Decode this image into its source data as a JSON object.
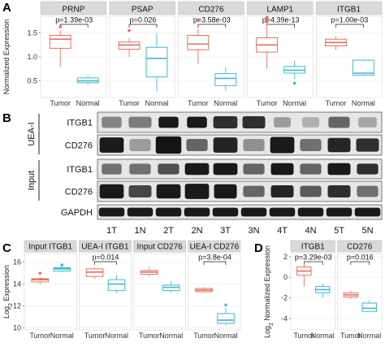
{
  "panels": {
    "A": "A",
    "B": "B",
    "C": "C",
    "D": "D"
  },
  "colors": {
    "tumor": "#e8705c",
    "normal": "#3fb8d6",
    "strip": "#d9d9d9",
    "grid": "#ececec"
  },
  "chart_data": [
    {
      "panel": "A",
      "type": "box",
      "ylabel": "Normalized Expression",
      "ylim": [
        0.15,
        1.85
      ],
      "yticks": [
        "0.5",
        "1.0",
        "1.5"
      ],
      "ytick_values": [
        0.5,
        1.0,
        1.5
      ],
      "categories": [
        "Tumor",
        "Normal"
      ],
      "facets": [
        {
          "label": "PRNP",
          "pvalue": "p=1.39e-03",
          "tumor": {
            "q1": 1.18,
            "median": 1.37,
            "q3": 1.45,
            "wlo": 0.8,
            "whi": 1.56,
            "outliers": [
              1.63
            ]
          },
          "normal": {
            "q1": 0.46,
            "median": 0.5,
            "q3": 0.56,
            "wlo": 0.42,
            "whi": 0.6,
            "outliers": []
          }
        },
        {
          "label": "PSAP",
          "pvalue": "p=0.026",
          "tumor": {
            "q1": 1.16,
            "median": 1.25,
            "q3": 1.31,
            "wlo": 1.0,
            "whi": 1.4,
            "outliers": [
              1.55
            ]
          },
          "normal": {
            "q1": 0.58,
            "median": 0.97,
            "q3": 1.2,
            "wlo": 0.28,
            "whi": 1.5,
            "outliers": []
          }
        },
        {
          "label": "CD276",
          "pvalue": "p=3.58e-03",
          "tumor": {
            "q1": 1.15,
            "median": 1.27,
            "q3": 1.45,
            "wlo": 0.85,
            "whi": 1.58,
            "outliers": [
              1.76
            ]
          },
          "normal": {
            "q1": 0.4,
            "median": 0.55,
            "q3": 0.65,
            "wlo": 0.3,
            "whi": 0.78,
            "outliers": []
          }
        },
        {
          "label": "LAMP1",
          "pvalue": "p=4.39e-13",
          "tumor": {
            "q1": 1.1,
            "median": 1.25,
            "q3": 1.4,
            "wlo": 0.75,
            "whi": 1.72,
            "outliers": [
              1.74,
              1.77,
              1.8,
              1.83
            ]
          },
          "normal": {
            "q1": 0.66,
            "median": 0.72,
            "q3": 0.8,
            "wlo": 0.53,
            "whi": 0.92,
            "outliers": [
              0.45
            ]
          }
        },
        {
          "label": "ITGB1",
          "pvalue": "p=1.00e-03",
          "tumor": {
            "q1": 1.23,
            "median": 1.3,
            "q3": 1.37,
            "wlo": 1.15,
            "whi": 1.43,
            "outliers": []
          },
          "normal": {
            "q1": 0.62,
            "median": 0.66,
            "q3": 0.93,
            "wlo": 0.6,
            "whi": 0.95,
            "outliers": []
          }
        }
      ]
    },
    {
      "panel": "C",
      "type": "box",
      "ylabel_main": "Log",
      "ylabel_sub": "2",
      "ylabel_rest": " Expression",
      "ylim": [
        9.8,
        16.8
      ],
      "yticks": [
        "10",
        "12",
        "14",
        "16"
      ],
      "ytick_values": [
        10,
        12,
        14,
        16
      ],
      "categories": [
        "Tumor",
        "Normal"
      ],
      "facets": [
        {
          "label": "Input ITGB1",
          "pvalue": "",
          "tumor": {
            "q1": 14.2,
            "median": 14.4,
            "q3": 14.5,
            "wlo": 14.0,
            "whi": 14.6,
            "outliers": [
              15.0
            ]
          },
          "normal": {
            "q1": 15.2,
            "median": 15.4,
            "q3": 15.5,
            "wlo": 15.1,
            "whi": 15.65,
            "outliers": [
              15.75
            ]
          }
        },
        {
          "label": "UEA-I  ITGB1",
          "pvalue": "p=0.014",
          "tumor": {
            "q1": 14.7,
            "median": 15.1,
            "q3": 15.4,
            "wlo": 14.5,
            "whi": 15.5,
            "outliers": []
          },
          "normal": {
            "q1": 13.4,
            "median": 14.0,
            "q3": 14.4,
            "wlo": 13.2,
            "whi": 14.8,
            "outliers": []
          }
        },
        {
          "label": "Input CD276",
          "pvalue": "",
          "tumor": {
            "q1": 14.9,
            "median": 15.1,
            "q3": 15.25,
            "wlo": 14.7,
            "whi": 15.6,
            "outliers": []
          },
          "normal": {
            "q1": 13.4,
            "median": 13.7,
            "q3": 13.9,
            "wlo": 13.2,
            "whi": 14.3,
            "outliers": []
          }
        },
        {
          "label": "UEA-I  CD276",
          "pvalue": "p=3.8e-04",
          "tumor": {
            "q1": 13.3,
            "median": 13.45,
            "q3": 13.6,
            "wlo": 13.2,
            "whi": 13.7,
            "outliers": []
          },
          "normal": {
            "q1": 10.4,
            "median": 10.7,
            "q3": 11.3,
            "wlo": 10.2,
            "whi": 11.8,
            "outliers": [
              12.1
            ]
          }
        }
      ]
    },
    {
      "panel": "D",
      "type": "box",
      "ylabel_main": "Log",
      "ylabel_sub": "2",
      "ylabel_rest": " Normalized Expression",
      "ylim": [
        -5.1,
        2.3
      ],
      "yticks": [
        "-4",
        "-2",
        "0",
        "2"
      ],
      "ytick_values": [
        -4,
        -2,
        0,
        2
      ],
      "categories": [
        "Tumor",
        "Normal"
      ],
      "facets": [
        {
          "label": "ITGB1",
          "pvalue": "p=3.29e-03",
          "tumor": {
            "q1": 0.2,
            "median": 0.6,
            "q3": 1.0,
            "wlo": -0.9,
            "whi": 1.4,
            "outliers": []
          },
          "normal": {
            "q1": -1.5,
            "median": -1.2,
            "q3": -0.9,
            "wlo": -2.0,
            "whi": -0.6,
            "outliers": []
          }
        },
        {
          "label": "CD276",
          "pvalue": "p=0.016",
          "tumor": {
            "q1": -1.9,
            "median": -1.7,
            "q3": -1.5,
            "wlo": -2.1,
            "whi": -1.3,
            "outliers": []
          },
          "normal": {
            "q1": -3.3,
            "median": -3.0,
            "q3": -2.5,
            "wlo": -3.4,
            "whi": -2.2,
            "outliers": []
          }
        }
      ]
    }
  ],
  "western_blot": {
    "side_labels": [
      "UEA-I",
      "Input"
    ],
    "rows": [
      {
        "label": "ITGB1",
        "bands": [
          [
            0.45,
            0.7,
            0.55
          ],
          [
            0.5,
            0.8,
            0.55
          ],
          [
            0.95,
            0.7,
            0.55
          ],
          [
            0.95,
            0.7,
            0.55
          ],
          [
            0.85,
            0.85,
            0.6
          ],
          [
            0.85,
            0.8,
            0.6
          ],
          [
            0.35,
            0.6,
            0.5
          ],
          [
            0.25,
            0.6,
            0.5
          ],
          [
            0.6,
            0.75,
            0.55
          ],
          [
            0.3,
            0.65,
            0.5
          ]
        ]
      },
      {
        "label": "CD276",
        "bands": [
          [
            0.95,
            0.85,
            0.75
          ],
          [
            0.35,
            0.75,
            0.6
          ],
          [
            0.97,
            0.9,
            0.85
          ],
          [
            0.6,
            0.75,
            0.6
          ],
          [
            0.9,
            0.85,
            0.75
          ],
          [
            0.4,
            0.75,
            0.6
          ],
          [
            0.95,
            0.85,
            0.8
          ],
          [
            0.55,
            0.75,
            0.6
          ],
          [
            0.9,
            0.8,
            0.7
          ],
          [
            0.85,
            0.8,
            0.65
          ]
        ]
      },
      {
        "label": "ITGB1",
        "bands": [
          [
            0.55,
            0.7,
            0.55
          ],
          [
            0.55,
            0.75,
            0.55
          ],
          [
            0.7,
            0.75,
            0.55
          ],
          [
            0.95,
            0.85,
            0.6
          ],
          [
            0.95,
            0.85,
            0.6
          ],
          [
            0.6,
            0.75,
            0.55
          ],
          [
            0.95,
            0.8,
            0.6
          ],
          [
            0.6,
            0.75,
            0.55
          ],
          [
            0.95,
            0.8,
            0.6
          ],
          [
            0.85,
            0.75,
            0.55
          ]
        ]
      },
      {
        "label": "CD276",
        "bands": [
          [
            0.95,
            0.85,
            0.7
          ],
          [
            0.75,
            0.8,
            0.6
          ],
          [
            0.95,
            0.85,
            0.7
          ],
          [
            0.95,
            0.85,
            0.75
          ],
          [
            0.95,
            0.8,
            0.7
          ],
          [
            0.6,
            0.75,
            0.55
          ],
          [
            0.9,
            0.8,
            0.6
          ],
          [
            0.65,
            0.75,
            0.55
          ],
          [
            0.85,
            0.8,
            0.6
          ],
          [
            0.55,
            0.75,
            0.55
          ]
        ]
      },
      {
        "label": "GAPDH",
        "bands": [
          [
            0.95,
            0.9,
            0.6
          ],
          [
            0.95,
            0.9,
            0.6
          ],
          [
            0.95,
            0.9,
            0.6
          ],
          [
            0.95,
            0.9,
            0.6
          ],
          [
            0.95,
            0.9,
            0.6
          ],
          [
            0.95,
            0.9,
            0.6
          ],
          [
            0.95,
            0.9,
            0.6
          ],
          [
            0.95,
            0.9,
            0.6
          ],
          [
            0.95,
            0.9,
            0.6
          ],
          [
            0.95,
            0.9,
            0.6
          ]
        ]
      }
    ],
    "lanes": [
      "1T",
      "1N",
      "2T",
      "2N",
      "3T",
      "3N",
      "4T",
      "4N",
      "5T",
      "5N"
    ]
  }
}
